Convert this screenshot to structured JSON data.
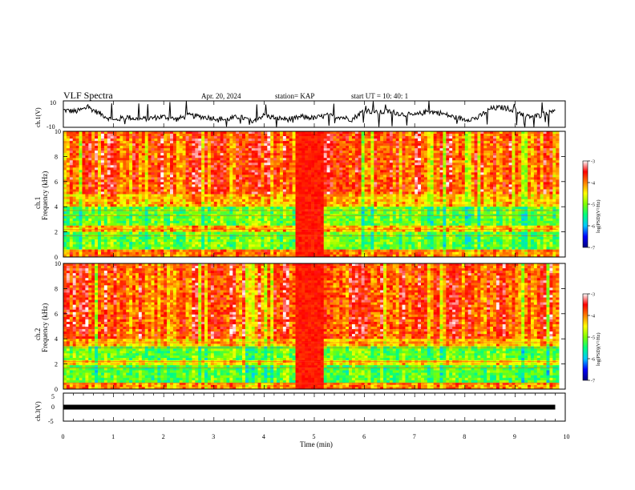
{
  "header": {
    "title": "VLF Spectra",
    "date": "Apr. 20, 2024",
    "station": "station= KAP",
    "start_ut": "start  UT  =   10: 40: 1"
  },
  "panels": {
    "ch1_wave_label": "ch.1(V)",
    "ch1_spec_label": "ch.1",
    "ch2_spec_label": "ch.2",
    "ch3_wave_label": "ch.3(V)",
    "freq_label": "Frequency  (kHz)",
    "time_label": "Time  (min)",
    "colorbar_label": "log(PSD)(V²/Hz)"
  },
  "colors": {
    "colormap": [
      "#00007f",
      "#0000ff",
      "#00c8ff",
      "#00ff7f",
      "#7fff00",
      "#ffff00",
      "#ff7f00",
      "#ff0000",
      "#ffffff"
    ],
    "trace": "#000000"
  },
  "chart_data": [
    {
      "type": "line",
      "name": "ch1-waveform",
      "ylabel": "ch.1(V)",
      "xlim": [
        0,
        10
      ],
      "ylim": [
        -10,
        10
      ],
      "yticks": [
        "10",
        "-10"
      ],
      "x": [
        0,
        0.25,
        0.5,
        0.75,
        1.0,
        1.25,
        1.5,
        1.75,
        2.0,
        2.25,
        2.5,
        2.75,
        3.0,
        3.25,
        3.5,
        3.75,
        4.0,
        4.25,
        4.5,
        4.75,
        5.0,
        5.25,
        5.5,
        5.75,
        6.0,
        6.25,
        6.5,
        6.75,
        7.0,
        7.25,
        7.5,
        7.75,
        8.0,
        8.25,
        8.5,
        8.75,
        9.0,
        9.25,
        9.5,
        9.8
      ],
      "y": [
        3,
        2,
        5,
        0,
        -5,
        -2,
        -4,
        -3,
        -2,
        -4,
        -1,
        -2,
        -3,
        -4,
        -2,
        -5,
        -1,
        -3,
        -4,
        -2,
        -3,
        -1,
        -2,
        -4,
        3,
        1,
        2,
        0,
        -1,
        2,
        1,
        -2,
        -4,
        -3,
        4,
        5,
        3,
        -2,
        -1,
        4
      ]
    },
    {
      "type": "heatmap",
      "name": "ch1-spectrogram",
      "title": "ch.1",
      "ylabel": "Frequency  (kHz)",
      "xlim": [
        0,
        10
      ],
      "ylim": [
        0,
        10
      ],
      "yticks": [
        0,
        2,
        4,
        6,
        8,
        10
      ],
      "colorbar": {
        "label": "log(PSD)(V²/Hz)",
        "range": [
          -7,
          -3
        ],
        "ticks": [
          -7,
          -6,
          -5,
          -4,
          -3
        ]
      },
      "bands": [
        {
          "freq": [
            5.0,
            10.0
          ],
          "level": -3.3
        },
        {
          "freq": [
            4.0,
            5.0
          ],
          "level": -3.8
        },
        {
          "freq": [
            2.5,
            4.0
          ],
          "level": -4.8
        },
        {
          "freq": [
            2.0,
            2.5
          ],
          "level": -3.8
        },
        {
          "freq": [
            0.6,
            2.0
          ],
          "level": -4.8
        },
        {
          "freq": [
            0.0,
            0.6
          ],
          "level": -3.5
        }
      ],
      "saturated_interval_min": [
        4.6,
        5.2
      ]
    },
    {
      "type": "heatmap",
      "name": "ch2-spectrogram",
      "title": "ch.2",
      "ylabel": "Frequency  (kHz)",
      "xlim": [
        0,
        10
      ],
      "ylim": [
        0,
        10
      ],
      "yticks": [
        0,
        2,
        4,
        6,
        8,
        10
      ],
      "colorbar": {
        "label": "log(PSD)(V²/Hz)",
        "range": [
          -7,
          -3
        ],
        "ticks": [
          -7,
          -6,
          -5,
          -4,
          -3
        ]
      },
      "bands": [
        {
          "freq": [
            4.0,
            10.0
          ],
          "level": -3.3
        },
        {
          "freq": [
            3.4,
            4.0
          ],
          "level": -3.8
        },
        {
          "freq": [
            2.3,
            3.4
          ],
          "level": -4.8
        },
        {
          "freq": [
            1.9,
            2.3
          ],
          "level": -4.0
        },
        {
          "freq": [
            0.5,
            1.9
          ],
          "level": -4.9
        },
        {
          "freq": [
            0.0,
            0.5
          ],
          "level": -3.6
        }
      ],
      "saturated_interval_min": [
        4.6,
        5.2
      ]
    },
    {
      "type": "line",
      "name": "ch3-waveform",
      "ylabel": "ch.3(V)",
      "xlabel": "Time  (min)",
      "xlim": [
        0,
        10
      ],
      "ylim": [
        -5,
        5
      ],
      "yticks": [
        "5",
        "0",
        "-5"
      ],
      "x": [
        0,
        9.8
      ],
      "y": [
        0,
        0
      ],
      "xticks": [
        0,
        1,
        2,
        3,
        4,
        5,
        6,
        7,
        8,
        9,
        10
      ]
    }
  ]
}
